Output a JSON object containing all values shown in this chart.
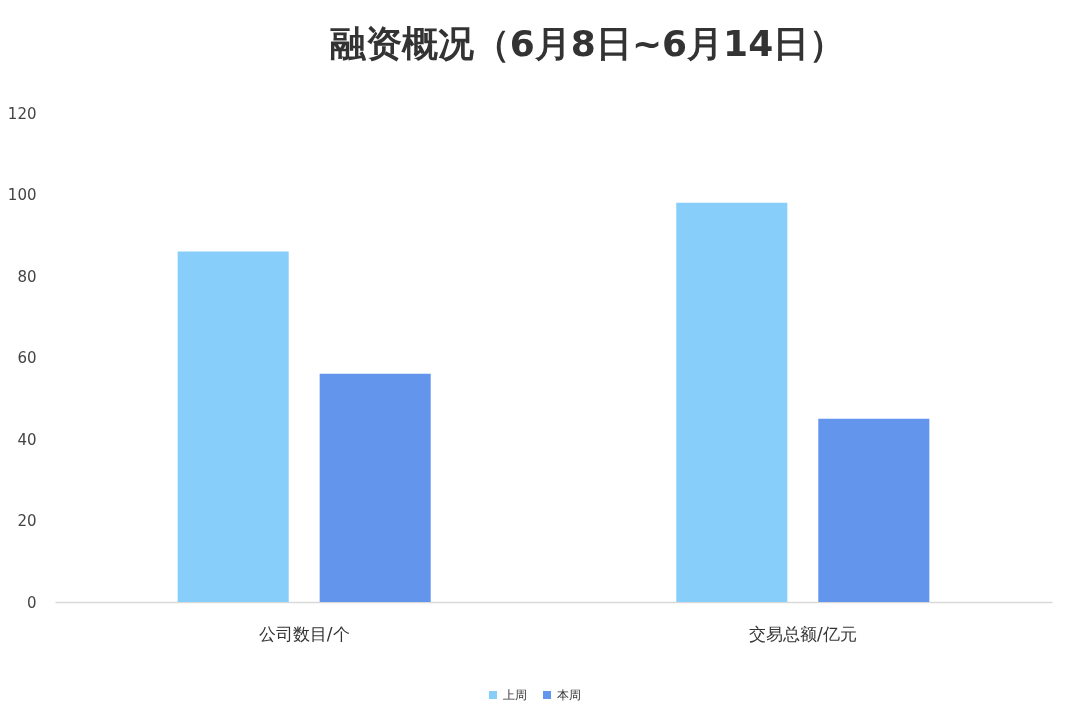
{
  "chart_data": {
    "type": "bar",
    "title": "融资概况（6月8日~6月14日）",
    "categories": [
      "公司数目/个",
      "交易总额/亿元"
    ],
    "series": [
      {
        "name": "上周",
        "color": "#87cefa",
        "values": [
          86,
          98
        ]
      },
      {
        "name": "本周",
        "color": "#6495ed",
        "values": [
          56,
          45
        ]
      }
    ],
    "ylim": [
      0,
      120
    ],
    "yticks": [
      0,
      20,
      40,
      60,
      80,
      100,
      120
    ],
    "legend": "bottom"
  }
}
